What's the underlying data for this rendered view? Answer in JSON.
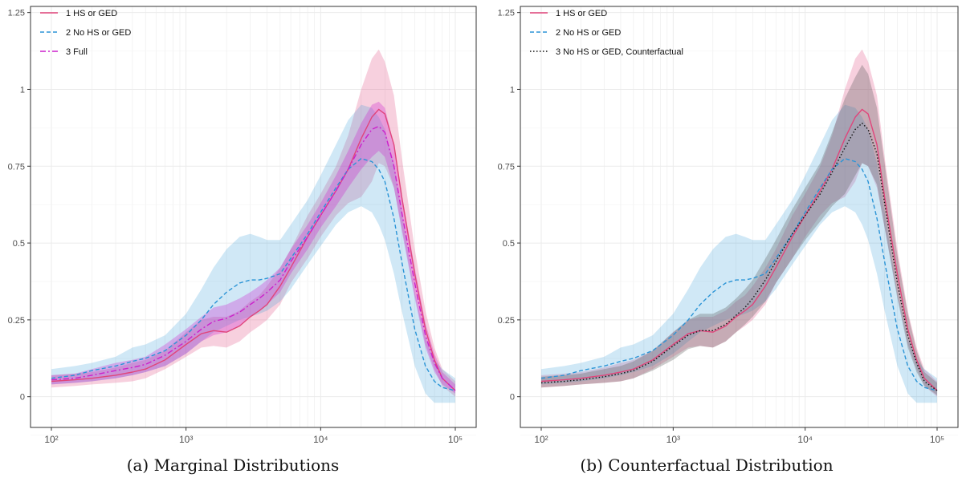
{
  "chart_data": [
    {
      "type": "line",
      "caption": "(a) Marginal Distributions",
      "xscale": "log10",
      "xlim": [
        100,
        100000
      ],
      "ylim": [
        -0.1,
        1.27
      ],
      "x_ticks": [
        "10²",
        "10³",
        "10⁴",
        "10⁵"
      ],
      "y_ticks": [
        "0",
        "0.25",
        "0.5",
        "0.75",
        "1",
        "1.25"
      ],
      "grid": true,
      "legend_position": "top-left",
      "series": [
        {
          "name": "1 HS or GED",
          "color": "#e0457b",
          "style": "solid",
          "x": [
            100,
            150,
            200,
            300,
            400,
            500,
            700,
            1000,
            1300,
            1600,
            2000,
            2500,
            3000,
            3500,
            4000,
            5000,
            6000,
            8000,
            10000,
            13000,
            16000,
            20000,
            24000,
            27000,
            30000,
            35000,
            40000,
            50000,
            60000,
            70000,
            80000,
            100000
          ],
          "y": [
            0.05,
            0.055,
            0.06,
            0.07,
            0.08,
            0.09,
            0.12,
            0.17,
            0.205,
            0.215,
            0.21,
            0.23,
            0.26,
            0.28,
            0.3,
            0.36,
            0.42,
            0.52,
            0.59,
            0.67,
            0.74,
            0.84,
            0.91,
            0.935,
            0.92,
            0.82,
            0.65,
            0.4,
            0.22,
            0.12,
            0.06,
            0.02
          ],
          "band_lower": [
            0.03,
            0.035,
            0.04,
            0.045,
            0.05,
            0.06,
            0.09,
            0.13,
            0.16,
            0.165,
            0.16,
            0.18,
            0.21,
            0.23,
            0.25,
            0.3,
            0.37,
            0.45,
            0.52,
            0.59,
            0.63,
            0.65,
            0.7,
            0.76,
            0.75,
            0.68,
            0.55,
            0.33,
            0.17,
            0.09,
            0.035,
            0.0
          ],
          "band_upper": [
            0.07,
            0.075,
            0.08,
            0.095,
            0.11,
            0.12,
            0.15,
            0.21,
            0.25,
            0.26,
            0.26,
            0.28,
            0.31,
            0.33,
            0.36,
            0.42,
            0.48,
            0.59,
            0.66,
            0.75,
            0.85,
            1.0,
            1.1,
            1.13,
            1.09,
            0.98,
            0.78,
            0.48,
            0.28,
            0.16,
            0.09,
            0.05
          ]
        },
        {
          "name": "2 No HS or GED",
          "color": "#2b94d6",
          "style": "dashed",
          "x": [
            100,
            150,
            200,
            300,
            400,
            500,
            700,
            1000,
            1300,
            1600,
            2000,
            2500,
            3000,
            3500,
            4000,
            5000,
            6000,
            8000,
            10000,
            13000,
            16000,
            20000,
            24000,
            27000,
            30000,
            35000,
            40000,
            50000,
            60000,
            70000,
            80000,
            100000
          ],
          "y": [
            0.06,
            0.07,
            0.085,
            0.1,
            0.115,
            0.125,
            0.15,
            0.2,
            0.25,
            0.3,
            0.34,
            0.37,
            0.38,
            0.38,
            0.385,
            0.4,
            0.45,
            0.53,
            0.6,
            0.68,
            0.74,
            0.775,
            0.765,
            0.74,
            0.7,
            0.58,
            0.44,
            0.22,
            0.1,
            0.05,
            0.03,
            0.02
          ],
          "band_lower": [
            0.04,
            0.045,
            0.05,
            0.06,
            0.07,
            0.08,
            0.1,
            0.14,
            0.18,
            0.21,
            0.23,
            0.25,
            0.26,
            0.27,
            0.28,
            0.31,
            0.35,
            0.43,
            0.49,
            0.56,
            0.6,
            0.62,
            0.6,
            0.56,
            0.51,
            0.4,
            0.28,
            0.1,
            0.01,
            -0.02,
            -0.02,
            -0.02
          ],
          "band_upper": [
            0.09,
            0.1,
            0.11,
            0.13,
            0.16,
            0.17,
            0.2,
            0.27,
            0.35,
            0.42,
            0.48,
            0.52,
            0.53,
            0.52,
            0.51,
            0.51,
            0.56,
            0.64,
            0.72,
            0.82,
            0.9,
            0.95,
            0.94,
            0.91,
            0.87,
            0.76,
            0.6,
            0.34,
            0.19,
            0.12,
            0.09,
            0.06
          ]
        },
        {
          "name": "3 Full",
          "color": "#cc1fcc",
          "style": "dashdot",
          "x": [
            100,
            150,
            200,
            300,
            400,
            500,
            700,
            1000,
            1300,
            1600,
            2000,
            2500,
            3000,
            3500,
            4000,
            5000,
            6000,
            8000,
            10000,
            13000,
            16000,
            20000,
            24000,
            27000,
            30000,
            35000,
            40000,
            50000,
            60000,
            70000,
            80000,
            100000
          ],
          "y": [
            0.055,
            0.06,
            0.07,
            0.085,
            0.095,
            0.105,
            0.135,
            0.18,
            0.22,
            0.245,
            0.255,
            0.275,
            0.3,
            0.32,
            0.34,
            0.38,
            0.44,
            0.52,
            0.59,
            0.67,
            0.74,
            0.82,
            0.87,
            0.88,
            0.86,
            0.75,
            0.6,
            0.37,
            0.2,
            0.11,
            0.06,
            0.02
          ],
          "band_lower": [
            0.04,
            0.045,
            0.05,
            0.06,
            0.07,
            0.08,
            0.1,
            0.14,
            0.18,
            0.2,
            0.21,
            0.23,
            0.26,
            0.28,
            0.3,
            0.34,
            0.4,
            0.48,
            0.55,
            0.62,
            0.68,
            0.74,
            0.78,
            0.8,
            0.78,
            0.68,
            0.54,
            0.32,
            0.16,
            0.08,
            0.04,
            0.01
          ],
          "band_upper": [
            0.07,
            0.075,
            0.09,
            0.11,
            0.12,
            0.13,
            0.17,
            0.22,
            0.26,
            0.29,
            0.3,
            0.32,
            0.34,
            0.36,
            0.38,
            0.42,
            0.48,
            0.56,
            0.63,
            0.72,
            0.8,
            0.89,
            0.95,
            0.96,
            0.94,
            0.82,
            0.66,
            0.42,
            0.24,
            0.14,
            0.08,
            0.04
          ]
        }
      ]
    },
    {
      "type": "line",
      "caption": "(b) Counterfactual Distribution",
      "xscale": "log10",
      "xlim": [
        100,
        100000
      ],
      "ylim": [
        -0.1,
        1.27
      ],
      "x_ticks": [
        "10²",
        "10³",
        "10⁴",
        "10⁵"
      ],
      "y_ticks": [
        "0",
        "0.25",
        "0.5",
        "0.75",
        "1",
        "1.25"
      ],
      "grid": true,
      "legend_position": "top-left",
      "series": [
        {
          "name": "1 HS or GED",
          "color": "#e0457b",
          "style": "solid",
          "x": [
            100,
            150,
            200,
            300,
            400,
            500,
            700,
            1000,
            1300,
            1600,
            2000,
            2500,
            3000,
            3500,
            4000,
            5000,
            6000,
            8000,
            10000,
            13000,
            16000,
            20000,
            24000,
            27000,
            30000,
            35000,
            40000,
            50000,
            60000,
            70000,
            80000,
            100000
          ],
          "y": [
            0.05,
            0.055,
            0.06,
            0.07,
            0.08,
            0.09,
            0.12,
            0.17,
            0.205,
            0.215,
            0.21,
            0.23,
            0.26,
            0.28,
            0.3,
            0.36,
            0.42,
            0.52,
            0.59,
            0.67,
            0.74,
            0.84,
            0.91,
            0.935,
            0.92,
            0.82,
            0.65,
            0.4,
            0.22,
            0.12,
            0.06,
            0.02
          ],
          "band_lower": [
            0.03,
            0.035,
            0.04,
            0.045,
            0.05,
            0.06,
            0.09,
            0.13,
            0.16,
            0.165,
            0.16,
            0.18,
            0.21,
            0.23,
            0.25,
            0.3,
            0.37,
            0.45,
            0.52,
            0.59,
            0.63,
            0.65,
            0.7,
            0.76,
            0.75,
            0.68,
            0.55,
            0.33,
            0.17,
            0.09,
            0.035,
            0.0
          ],
          "band_upper": [
            0.07,
            0.075,
            0.08,
            0.095,
            0.11,
            0.12,
            0.15,
            0.21,
            0.25,
            0.26,
            0.26,
            0.28,
            0.31,
            0.33,
            0.36,
            0.42,
            0.48,
            0.59,
            0.66,
            0.75,
            0.85,
            1.0,
            1.1,
            1.13,
            1.09,
            0.98,
            0.78,
            0.48,
            0.28,
            0.16,
            0.09,
            0.05
          ]
        },
        {
          "name": "2 No HS or GED",
          "color": "#2b94d6",
          "style": "dashed",
          "x": [
            100,
            150,
            200,
            300,
            400,
            500,
            700,
            1000,
            1300,
            1600,
            2000,
            2500,
            3000,
            3500,
            4000,
            5000,
            6000,
            8000,
            10000,
            13000,
            16000,
            20000,
            24000,
            27000,
            30000,
            35000,
            40000,
            50000,
            60000,
            70000,
            80000,
            100000
          ],
          "y": [
            0.06,
            0.07,
            0.085,
            0.1,
            0.115,
            0.125,
            0.15,
            0.2,
            0.25,
            0.3,
            0.34,
            0.37,
            0.38,
            0.38,
            0.385,
            0.4,
            0.45,
            0.53,
            0.6,
            0.68,
            0.74,
            0.775,
            0.765,
            0.74,
            0.7,
            0.58,
            0.44,
            0.22,
            0.1,
            0.05,
            0.03,
            0.02
          ],
          "band_lower": [
            0.04,
            0.045,
            0.05,
            0.06,
            0.07,
            0.08,
            0.1,
            0.14,
            0.18,
            0.21,
            0.23,
            0.25,
            0.26,
            0.27,
            0.28,
            0.31,
            0.35,
            0.43,
            0.49,
            0.56,
            0.6,
            0.62,
            0.6,
            0.56,
            0.51,
            0.4,
            0.28,
            0.1,
            0.01,
            -0.02,
            -0.02,
            -0.02
          ],
          "band_upper": [
            0.09,
            0.1,
            0.11,
            0.13,
            0.16,
            0.17,
            0.2,
            0.27,
            0.35,
            0.42,
            0.48,
            0.52,
            0.53,
            0.52,
            0.51,
            0.51,
            0.56,
            0.64,
            0.72,
            0.82,
            0.9,
            0.95,
            0.94,
            0.91,
            0.87,
            0.76,
            0.6,
            0.34,
            0.19,
            0.12,
            0.09,
            0.06
          ]
        },
        {
          "name": "3 No HS or GED, Counterfactual",
          "color": "#111111",
          "style": "dotted",
          "x": [
            100,
            150,
            200,
            300,
            400,
            500,
            700,
            1000,
            1300,
            1600,
            2000,
            2500,
            3000,
            3500,
            4000,
            5000,
            6000,
            8000,
            10000,
            13000,
            16000,
            20000,
            24000,
            27000,
            30000,
            35000,
            40000,
            50000,
            60000,
            70000,
            80000,
            100000
          ],
          "y": [
            0.045,
            0.05,
            0.055,
            0.065,
            0.075,
            0.085,
            0.115,
            0.165,
            0.2,
            0.215,
            0.215,
            0.235,
            0.265,
            0.29,
            0.32,
            0.38,
            0.44,
            0.53,
            0.59,
            0.66,
            0.73,
            0.81,
            0.87,
            0.89,
            0.87,
            0.79,
            0.63,
            0.37,
            0.2,
            0.11,
            0.05,
            0.02
          ],
          "band_lower": [
            0.03,
            0.035,
            0.04,
            0.045,
            0.05,
            0.06,
            0.085,
            0.12,
            0.155,
            0.165,
            0.16,
            0.18,
            0.21,
            0.235,
            0.26,
            0.31,
            0.37,
            0.45,
            0.51,
            0.57,
            0.62,
            0.66,
            0.72,
            0.76,
            0.75,
            0.69,
            0.55,
            0.32,
            0.16,
            0.08,
            0.035,
            0.005
          ],
          "band_upper": [
            0.065,
            0.07,
            0.075,
            0.09,
            0.1,
            0.115,
            0.15,
            0.21,
            0.25,
            0.27,
            0.27,
            0.29,
            0.32,
            0.35,
            0.38,
            0.45,
            0.51,
            0.61,
            0.68,
            0.76,
            0.86,
            0.97,
            1.04,
            1.08,
            1.05,
            0.94,
            0.76,
            0.46,
            0.27,
            0.15,
            0.08,
            0.045
          ]
        }
      ]
    }
  ]
}
